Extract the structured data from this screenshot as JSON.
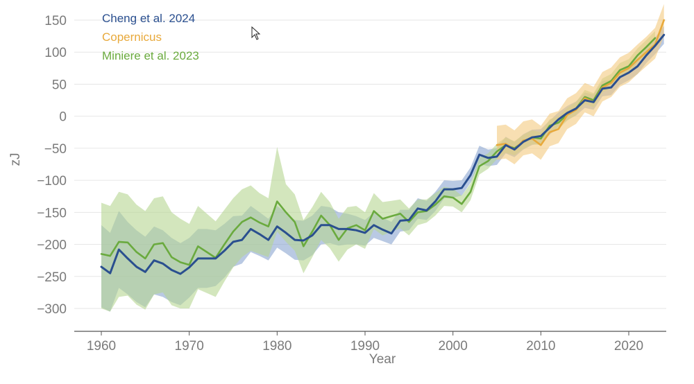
{
  "chart_data": {
    "type": "line",
    "xlabel": "Year",
    "ylabel": "zJ",
    "xlim": [
      1956,
      2024
    ],
    "ylim": [
      -335,
      170
    ],
    "x_ticks": [
      1960,
      1970,
      1980,
      1990,
      2000,
      2010,
      2020
    ],
    "y_ticks": [
      150,
      100,
      50,
      0,
      -50,
      -100,
      -150,
      -200,
      -250,
      -300
    ],
    "grid": "horizontal",
    "legend_position": "top-left",
    "series": [
      {
        "name": "Cheng et al. 2024",
        "color": "#2a4f8f",
        "band_color": "#7f9ccc",
        "x": [
          1960,
          1961,
          1962,
          1963,
          1964,
          1965,
          1966,
          1967,
          1968,
          1969,
          1970,
          1971,
          1972,
          1973,
          1974,
          1975,
          1976,
          1977,
          1978,
          1979,
          1980,
          1981,
          1982,
          1983,
          1984,
          1985,
          1986,
          1987,
          1988,
          1989,
          1990,
          1991,
          1992,
          1993,
          1994,
          1995,
          1996,
          1997,
          1998,
          1999,
          2000,
          2001,
          2002,
          2003,
          2004,
          2005,
          2006,
          2007,
          2008,
          2009,
          2010,
          2011,
          2012,
          2013,
          2014,
          2015,
          2016,
          2017,
          2018,
          2019,
          2020,
          2021,
          2022,
          2023,
          2024
        ],
        "y": [
          -235,
          -245,
          -208,
          -222,
          -235,
          -243,
          -225,
          -230,
          -240,
          -246,
          -236,
          -222,
          -222,
          -222,
          -210,
          -196,
          -193,
          -176,
          -184,
          -193,
          -172,
          -182,
          -193,
          -194,
          -186,
          -170,
          -170,
          -176,
          -176,
          -178,
          -182,
          -170,
          -177,
          -183,
          -163,
          -162,
          -144,
          -147,
          -133,
          -114,
          -114,
          -112,
          -92,
          -60,
          -65,
          -63,
          -45,
          -52,
          -40,
          -33,
          -31,
          -18,
          -5,
          5,
          12,
          25,
          22,
          43,
          45,
          61,
          68,
          78,
          95,
          110,
          127
        ],
        "lower": [
          -298,
          -305,
          -268,
          -278,
          -290,
          -298,
          -278,
          -282,
          -290,
          -295,
          -283,
          -268,
          -268,
          -265,
          -252,
          -235,
          -230,
          -212,
          -218,
          -225,
          -205,
          -214,
          -224,
          -225,
          -217,
          -200,
          -198,
          -202,
          -200,
          -200,
          -202,
          -190,
          -195,
          -200,
          -180,
          -178,
          -160,
          -162,
          -148,
          -128,
          -127,
          -124,
          -104,
          -74,
          -78,
          -76,
          -58,
          -64,
          -52,
          -45,
          -42,
          -29,
          -16,
          -6,
          1,
          13,
          10,
          31,
          33,
          49,
          56,
          66,
          83,
          97,
          113
        ],
        "upper": [
          -170,
          -182,
          -148,
          -165,
          -178,
          -188,
          -172,
          -178,
          -190,
          -198,
          -190,
          -176,
          -176,
          -178,
          -168,
          -156,
          -155,
          -140,
          -150,
          -160,
          -140,
          -150,
          -162,
          -163,
          -155,
          -140,
          -142,
          -150,
          -152,
          -156,
          -162,
          -150,
          -158,
          -165,
          -146,
          -146,
          -128,
          -132,
          -118,
          -100,
          -101,
          -100,
          -80,
          -46,
          -52,
          -50,
          -32,
          -40,
          -28,
          -21,
          -20,
          -7,
          6,
          16,
          23,
          37,
          34,
          55,
          57,
          73,
          80,
          90,
          107,
          123,
          141
        ]
      },
      {
        "name": "Copernicus",
        "color": "#e8a93b",
        "band_color": "#f4c97e",
        "x": [
          2005,
          2006,
          2007,
          2008,
          2009,
          2010,
          2011,
          2012,
          2013,
          2014,
          2015,
          2016,
          2017,
          2018,
          2019,
          2020,
          2021,
          2022,
          2023,
          2024
        ],
        "y": [
          -45,
          -43,
          -52,
          -38,
          -35,
          -45,
          -25,
          -20,
          2,
          10,
          28,
          22,
          45,
          52,
          68,
          75,
          88,
          100,
          112,
          150
        ],
        "lower": [
          -68,
          -66,
          -75,
          -61,
          -58,
          -68,
          -47,
          -42,
          -20,
          -12,
          6,
          0,
          23,
          30,
          46,
          53,
          66,
          78,
          90,
          125
        ],
        "upper": [
          -15,
          -13,
          -22,
          -8,
          -5,
          -15,
          4,
          8,
          28,
          36,
          52,
          46,
          69,
          76,
          92,
          99,
          112,
          124,
          138,
          175
        ]
      },
      {
        "name": "Miniere et al. 2023",
        "color": "#6aaa3e",
        "band_color": "#b6d691",
        "x": [
          1960,
          1961,
          1962,
          1963,
          1964,
          1965,
          1966,
          1967,
          1968,
          1969,
          1970,
          1971,
          1972,
          1973,
          1974,
          1975,
          1976,
          1977,
          1978,
          1979,
          1980,
          1981,
          1982,
          1983,
          1984,
          1985,
          1986,
          1987,
          1988,
          1989,
          1990,
          1991,
          1992,
          1993,
          1994,
          1995,
          1996,
          1997,
          1998,
          1999,
          2000,
          2001,
          2002,
          2003,
          2004,
          2005,
          2006,
          2007,
          2008,
          2009,
          2010,
          2011,
          2012,
          2013,
          2014,
          2015,
          2016,
          2017,
          2018,
          2019,
          2020,
          2021,
          2022,
          2023
        ],
        "y": [
          -215,
          -218,
          -196,
          -197,
          -212,
          -222,
          -200,
          -198,
          -220,
          -228,
          -232,
          -203,
          -212,
          -221,
          -200,
          -180,
          -165,
          -158,
          -166,
          -172,
          -133,
          -150,
          -165,
          -203,
          -180,
          -155,
          -170,
          -193,
          -175,
          -170,
          -178,
          -148,
          -160,
          -156,
          -152,
          -165,
          -150,
          -148,
          -138,
          -125,
          -127,
          -137,
          -118,
          -78,
          -70,
          -55,
          -45,
          -50,
          -40,
          -33,
          -35,
          -15,
          -10,
          3,
          12,
          30,
          25,
          48,
          55,
          72,
          78,
          95,
          108,
          122
        ],
        "lower": [
          -300,
          -305,
          -282,
          -280,
          -294,
          -302,
          -278,
          -275,
          -295,
          -300,
          -300,
          -270,
          -276,
          -282,
          -258,
          -236,
          -220,
          -210,
          -215,
          -220,
          -180,
          -196,
          -210,
          -245,
          -220,
          -193,
          -206,
          -227,
          -208,
          -200,
          -207,
          -176,
          -186,
          -180,
          -175,
          -186,
          -170,
          -166,
          -155,
          -140,
          -141,
          -150,
          -131,
          -91,
          -82,
          -67,
          -57,
          -61,
          -51,
          -44,
          -45,
          -25,
          -20,
          -7,
          2,
          19,
          14,
          37,
          44,
          61,
          67,
          84,
          97,
          111
        ],
        "upper": [
          -135,
          -140,
          -118,
          -122,
          -138,
          -148,
          -128,
          -125,
          -150,
          -160,
          -168,
          -140,
          -152,
          -164,
          -146,
          -128,
          -114,
          -108,
          -120,
          -128,
          -48,
          -106,
          -122,
          -162,
          -142,
          -118,
          -134,
          -160,
          -142,
          -140,
          -150,
          -120,
          -134,
          -132,
          -130,
          -144,
          -130,
          -130,
          -120,
          -110,
          -113,
          -124,
          -105,
          -65,
          -58,
          -43,
          -33,
          -39,
          -29,
          -22,
          -25,
          -5,
          0,
          13,
          22,
          41,
          36,
          59,
          66,
          83,
          89,
          106,
          119,
          133
        ]
      }
    ]
  }
}
